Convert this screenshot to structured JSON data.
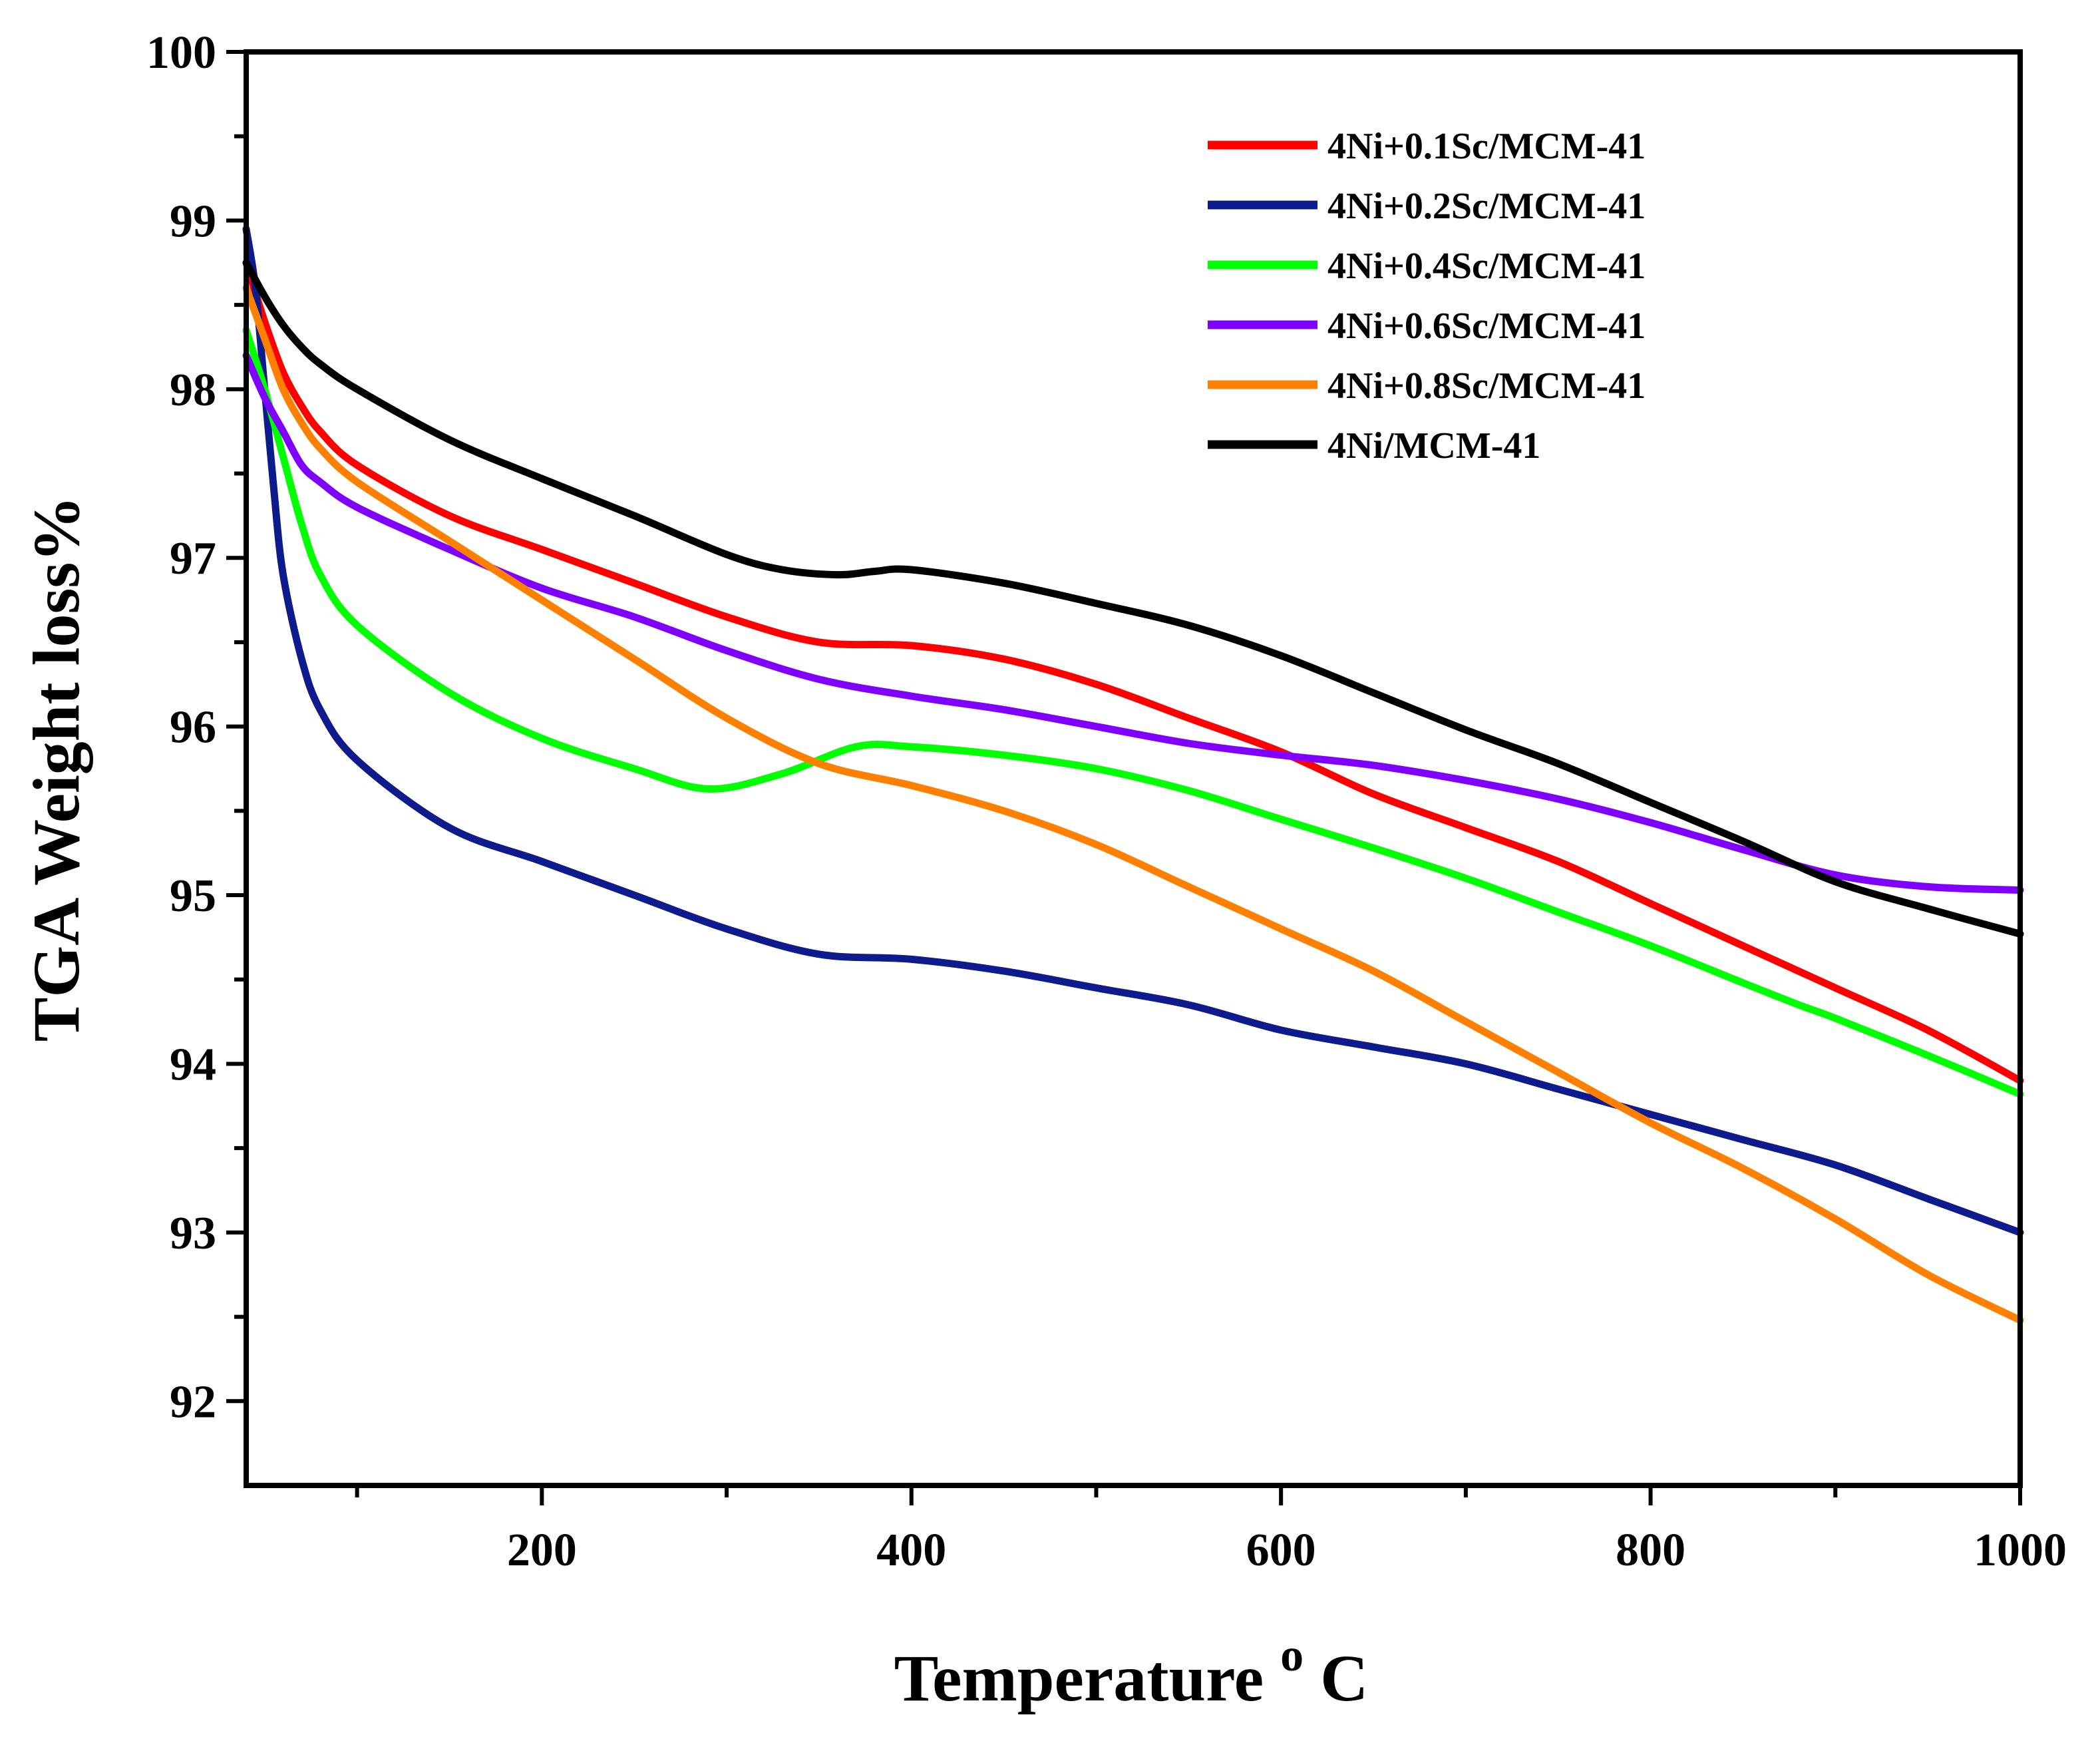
{
  "chart_data": {
    "type": "line",
    "xlabel": "Temperature",
    "xlabel_super": "o",
    "xlabel_unit": "C",
    "ylabel": "TGA Weight loss%",
    "xlim": [
      40,
      1000
    ],
    "ylim": [
      91.5,
      100
    ],
    "x_ticks": [
      200,
      400,
      600,
      800,
      1000
    ],
    "y_ticks": [
      92,
      93,
      94,
      95,
      96,
      97,
      98,
      99,
      100
    ],
    "legend_position": "top-right",
    "series": [
      {
        "name": "4Ni+0.1Sc/MCM-41",
        "color": "#ff0000",
        "x": [
          40,
          50,
          60,
          70,
          80,
          100,
          150,
          200,
          250,
          300,
          350,
          400,
          450,
          500,
          550,
          600,
          650,
          700,
          750,
          800,
          850,
          900,
          950,
          1000
        ],
        "y": [
          98.75,
          98.4,
          98.1,
          97.9,
          97.75,
          97.55,
          97.25,
          97.05,
          96.85,
          96.65,
          96.5,
          96.48,
          96.4,
          96.25,
          96.05,
          95.85,
          95.6,
          95.4,
          95.2,
          94.95,
          94.7,
          94.45,
          94.2,
          93.9
        ]
      },
      {
        "name": "4Ni+0.2Sc/MCM-41",
        "color": "#0d1b8c",
        "x": [
          40,
          45,
          50,
          55,
          60,
          70,
          80,
          100,
          150,
          200,
          250,
          300,
          350,
          400,
          450,
          500,
          550,
          600,
          650,
          700,
          750,
          800,
          850,
          900,
          950,
          1000
        ],
        "y": [
          98.95,
          98.6,
          98.0,
          97.4,
          96.9,
          96.4,
          96.1,
          95.8,
          95.4,
          95.2,
          95.0,
          94.8,
          94.65,
          94.62,
          94.55,
          94.45,
          94.35,
          94.2,
          94.1,
          94.0,
          93.85,
          93.7,
          93.55,
          93.4,
          93.2,
          93.0
        ]
      },
      {
        "name": "4Ni+0.4Sc/MCM-41",
        "color": "#00ff00",
        "x": [
          40,
          50,
          60,
          70,
          80,
          100,
          150,
          200,
          250,
          290,
          330,
          370,
          400,
          450,
          500,
          550,
          600,
          650,
          700,
          750,
          800,
          850,
          880,
          900,
          950,
          1000
        ],
        "y": [
          98.35,
          98.0,
          97.6,
          97.2,
          96.9,
          96.6,
          96.2,
          95.93,
          95.75,
          95.63,
          95.72,
          95.88,
          95.88,
          95.83,
          95.75,
          95.62,
          95.45,
          95.28,
          95.1,
          94.9,
          94.7,
          94.48,
          94.35,
          94.27,
          94.05,
          93.82
        ]
      },
      {
        "name": "4Ni+0.6Sc/MCM-41",
        "color": "#8000ff",
        "x": [
          40,
          50,
          60,
          70,
          80,
          100,
          150,
          200,
          250,
          300,
          350,
          400,
          450,
          500,
          550,
          600,
          650,
          700,
          750,
          800,
          850,
          900,
          950,
          1000
        ],
        "y": [
          98.2,
          97.95,
          97.75,
          97.55,
          97.45,
          97.3,
          97.05,
          96.82,
          96.65,
          96.45,
          96.28,
          96.18,
          96.1,
          96.0,
          95.9,
          95.83,
          95.77,
          95.68,
          95.57,
          95.43,
          95.27,
          95.12,
          95.05,
          95.03
        ]
      },
      {
        "name": "4Ni+0.8Sc/MCM-41",
        "color": "#ff8000",
        "x": [
          40,
          50,
          60,
          70,
          80,
          100,
          150,
          200,
          250,
          300,
          350,
          400,
          450,
          500,
          550,
          600,
          650,
          700,
          750,
          800,
          850,
          900,
          950,
          1000
        ],
        "y": [
          98.6,
          98.3,
          98.0,
          97.8,
          97.65,
          97.45,
          97.1,
          96.75,
          96.4,
          96.05,
          95.78,
          95.65,
          95.5,
          95.3,
          95.05,
          94.8,
          94.55,
          94.25,
          93.95,
          93.65,
          93.38,
          93.08,
          92.75,
          92.48
        ]
      },
      {
        "name": "4Ni/MCM-41",
        "color": "#000000",
        "x": [
          40,
          50,
          60,
          70,
          80,
          100,
          150,
          200,
          250,
          300,
          330,
          360,
          380,
          400,
          450,
          500,
          550,
          600,
          650,
          700,
          750,
          800,
          850,
          900,
          950,
          1000
        ],
        "y": [
          98.75,
          98.55,
          98.38,
          98.25,
          98.15,
          98.0,
          97.7,
          97.47,
          97.25,
          97.02,
          96.93,
          96.9,
          96.92,
          96.93,
          96.85,
          96.73,
          96.6,
          96.42,
          96.2,
          95.98,
          95.78,
          95.55,
          95.32,
          95.08,
          94.92,
          94.77
        ]
      }
    ]
  }
}
